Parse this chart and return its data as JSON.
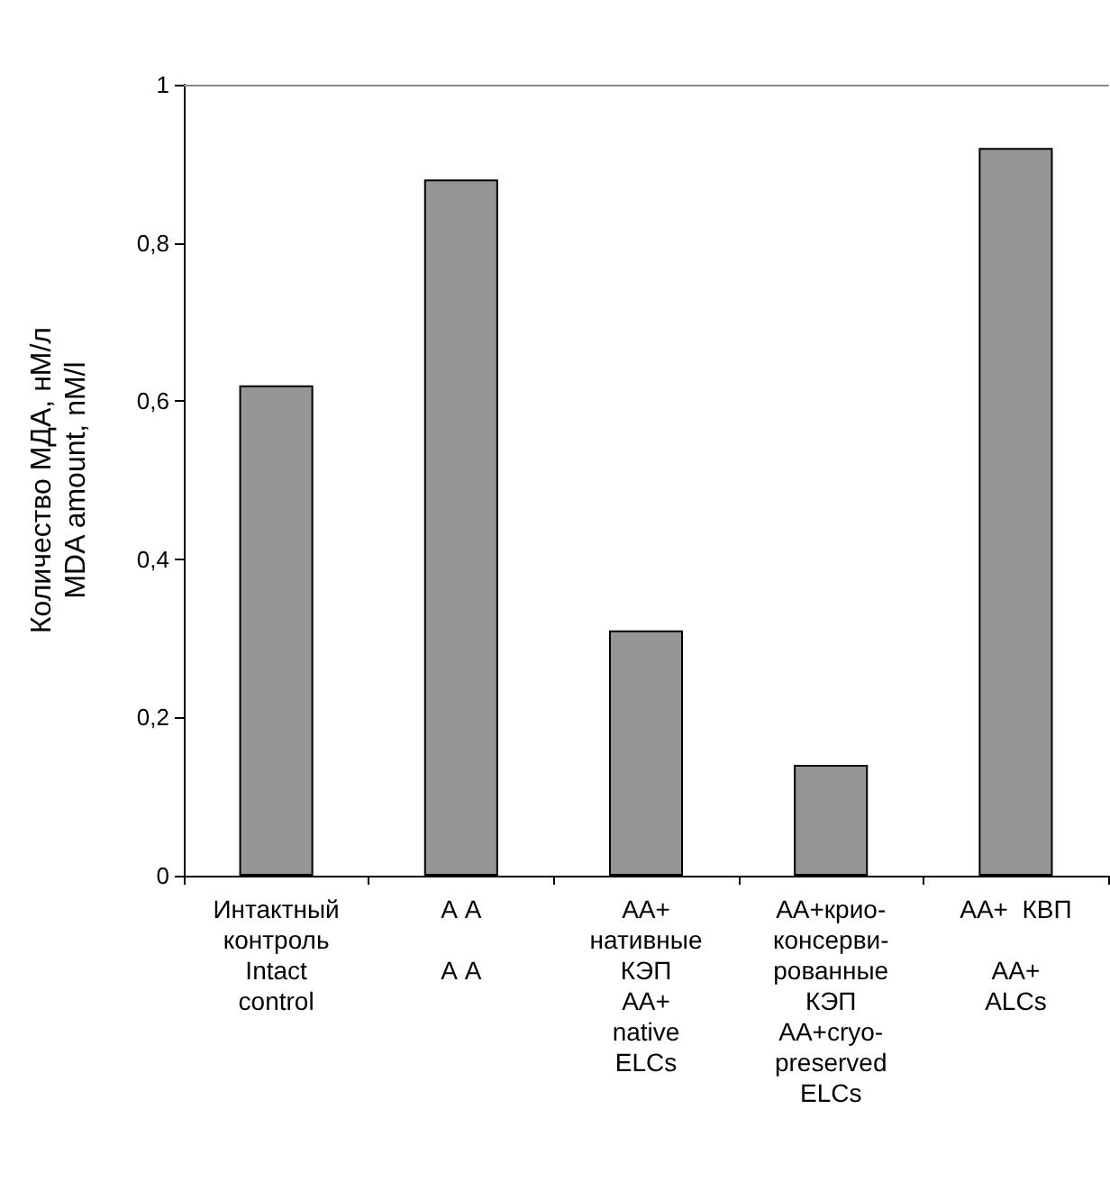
{
  "chart_data": {
    "type": "bar",
    "ylabel": "Количество МДА, нМ/л\nMDA amount, nM/l",
    "categories": [
      "Интактный\nконтроль\nIntact\ncontrol",
      "А А\n\nА А",
      "АА+\nнативные\nКЭП\nАА+\nnative\nELCs",
      "АА+крио-\nконсерви-\nрованные\nКЭП\nАА+cryo-\npreserved\nELCs",
      "АА+  КВП\n\nАА+\nALCs"
    ],
    "values": [
      0.62,
      0.88,
      0.31,
      0.14,
      0.92
    ],
    "color": "#969696",
    "ylim": [
      0,
      1
    ],
    "yticks": [
      0,
      {
        "value": 0.2,
        "label": "0,2"
      },
      {
        "value": 0.4,
        "label": "0,4"
      },
      {
        "value": 0.6,
        "label": "0,6"
      },
      {
        "value": 0.8,
        "label": "0,8"
      },
      1
    ],
    "grid": false
  }
}
